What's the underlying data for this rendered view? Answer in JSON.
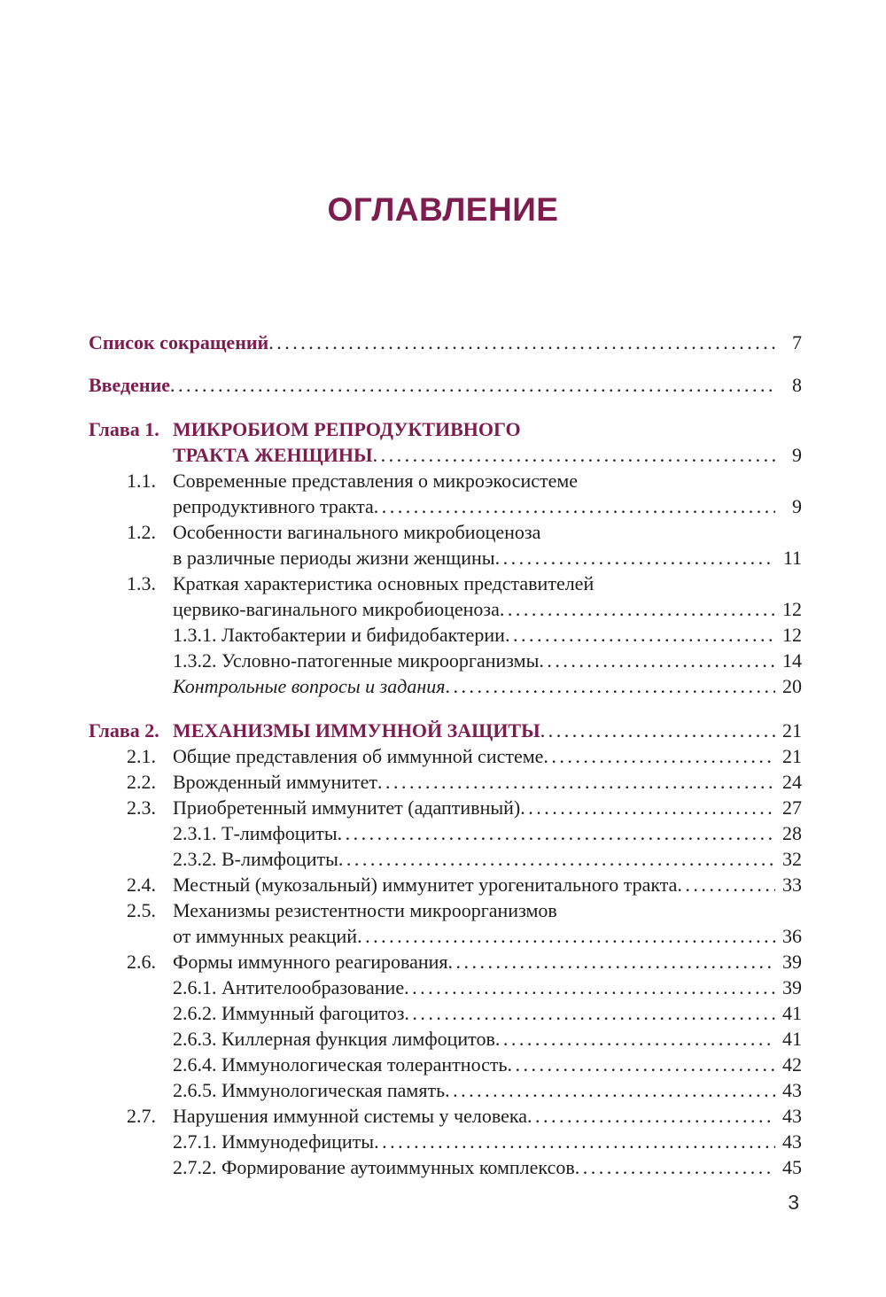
{
  "page": {
    "title": "ОГЛАВЛЕНИЕ",
    "footer_page_number": "3",
    "accent_color": "#7d1c4f",
    "text_color": "#1d1d1b"
  },
  "toc": {
    "rows": [
      {
        "type": "front",
        "num": "",
        "lines": [
          "Список сокращений"
        ],
        "page": "7"
      },
      {
        "type": "front",
        "num": "",
        "lines": [
          "Введение"
        ],
        "page": "8"
      },
      {
        "type": "chapter",
        "num": "Глава 1.",
        "lines": [
          "МИКРОБИОМ РЕПРОДУКТИВНОГО",
          "ТРАКТА ЖЕНЩИНЫ"
        ],
        "page": "9"
      },
      {
        "type": "section",
        "num": "1.1.",
        "lines": [
          "Современные представления о микроэкосистеме",
          "репродуктивного тракта"
        ],
        "page": "9"
      },
      {
        "type": "section",
        "num": "1.2.",
        "lines": [
          "Особенности вагинального микробиоценоза",
          "в различные периоды жизни женщины"
        ],
        "page": "11"
      },
      {
        "type": "section",
        "num": "1.3.",
        "lines": [
          "Краткая характеристика основных представителей",
          "цервико-вагинального микробиоценоза"
        ],
        "page": "12"
      },
      {
        "type": "subsection",
        "num": "",
        "lines": [
          "1.3.1. Лактобактерии и бифидобактерии"
        ],
        "page": "12"
      },
      {
        "type": "subsection",
        "num": "",
        "lines": [
          "1.3.2. Условно-патогенные микроорганизмы"
        ],
        "page": "14"
      },
      {
        "type": "italic",
        "num": "",
        "lines": [
          "Контрольные вопросы и задания"
        ],
        "page": "20"
      },
      {
        "type": "chapter",
        "num": "Глава 2.",
        "lines": [
          "МЕХАНИЗМЫ ИММУННОЙ ЗАЩИТЫ"
        ],
        "page": "21"
      },
      {
        "type": "section",
        "num": "2.1.",
        "lines": [
          "Общие представления об иммунной системе"
        ],
        "page": "21"
      },
      {
        "type": "section",
        "num": "2.2.",
        "lines": [
          "Врожденный иммунитет"
        ],
        "page": "24"
      },
      {
        "type": "section",
        "num": "2.3.",
        "lines": [
          "Приобретенный иммунитет (адаптивный)"
        ],
        "page": "27"
      },
      {
        "type": "subsection",
        "num": "",
        "lines": [
          "2.3.1. Т-лимфоциты"
        ],
        "page": "28"
      },
      {
        "type": "subsection",
        "num": "",
        "lines": [
          "2.3.2. В-лимфоциты"
        ],
        "page": "32"
      },
      {
        "type": "section",
        "num": "2.4.",
        "lines": [
          "Местный (мукозальный) иммунитет урогенитального тракта"
        ],
        "page": "33"
      },
      {
        "type": "section",
        "num": "2.5.",
        "lines": [
          "Механизмы резистентности микроорганизмов",
          "от иммунных реакций"
        ],
        "page": "36"
      },
      {
        "type": "section",
        "num": "2.6.",
        "lines": [
          "Формы иммунного реагирования"
        ],
        "page": "39"
      },
      {
        "type": "subsection",
        "num": "",
        "lines": [
          "2.6.1. Антителообразование"
        ],
        "page": "39"
      },
      {
        "type": "subsection",
        "num": "",
        "lines": [
          "2.6.2. Иммунный фагоцитоз"
        ],
        "page": "41"
      },
      {
        "type": "subsection",
        "num": "",
        "lines": [
          "2.6.3. Киллерная функция лимфоцитов"
        ],
        "page": "41"
      },
      {
        "type": "subsection",
        "num": "",
        "lines": [
          "2.6.4. Иммунологическая толерантность"
        ],
        "page": "42"
      },
      {
        "type": "subsection",
        "num": "",
        "lines": [
          "2.6.5. Иммунологическая память"
        ],
        "page": "43"
      },
      {
        "type": "section",
        "num": "2.7.",
        "lines": [
          "Нарушения иммунной системы у человека"
        ],
        "page": "43"
      },
      {
        "type": "subsection",
        "num": "",
        "lines": [
          "2.7.1. Иммунодефициты"
        ],
        "page": "43"
      },
      {
        "type": "subsection",
        "num": "",
        "lines": [
          "2.7.2. Формирование аутоиммунных комплексов"
        ],
        "page": "45"
      }
    ]
  }
}
